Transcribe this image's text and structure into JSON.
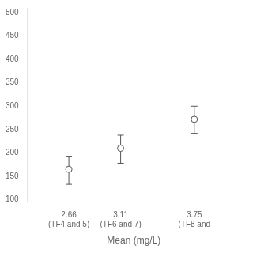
{
  "chart_data": {
    "type": "scatter",
    "x": [
      2.66,
      3.11,
      3.75
    ],
    "values": [
      165,
      210,
      272
    ],
    "yerr_lower": [
      32,
      32,
      30
    ],
    "yerr_upper": [
      28,
      28,
      28
    ],
    "xlabel": "Mean (mg/L)",
    "xlim": [
      2.3,
      4.15
    ],
    "xticks": [
      {
        "value": 2.66,
        "label": "2.66\n(TF4 and 5)"
      },
      {
        "value": 3.11,
        "label": "3.11\n(TF6 and 7)"
      },
      {
        "value": 3.75,
        "label": "3.75\n(TF8 and"
      }
    ],
    "ylim": [
      95,
      510
    ],
    "yticks": [
      100,
      150,
      200,
      250,
      300,
      350,
      400,
      450,
      500
    ],
    "color": "#555555",
    "marker": "circle",
    "grid": false
  }
}
